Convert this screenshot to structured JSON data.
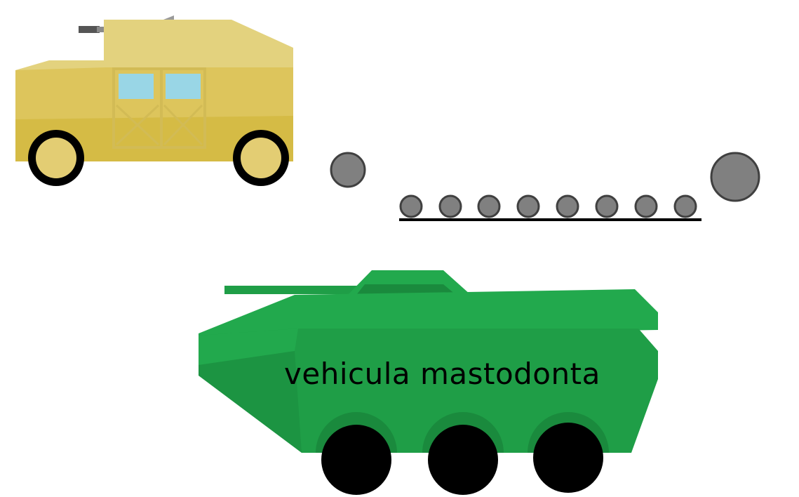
{
  "scene": {
    "background": "#ffffff",
    "vehicle_label": "vehicula mastodonta",
    "humvee": {
      "name": "humvee",
      "body_color": "#e3cd73",
      "window_color": "#99d6e6",
      "wheel_color": "#e3cd73",
      "tire_color": "#000000",
      "gun_color": "#8a8a8a"
    },
    "apc": {
      "name": "armored-vehicle",
      "body_color": "#1f9e47",
      "shade_color": "#1a8a3d",
      "light_color": "#22a94d",
      "wheel_color": "#000000"
    },
    "projectiles": {
      "color": "#808080",
      "outline": "#404040",
      "small_ball_count": 8
    }
  }
}
